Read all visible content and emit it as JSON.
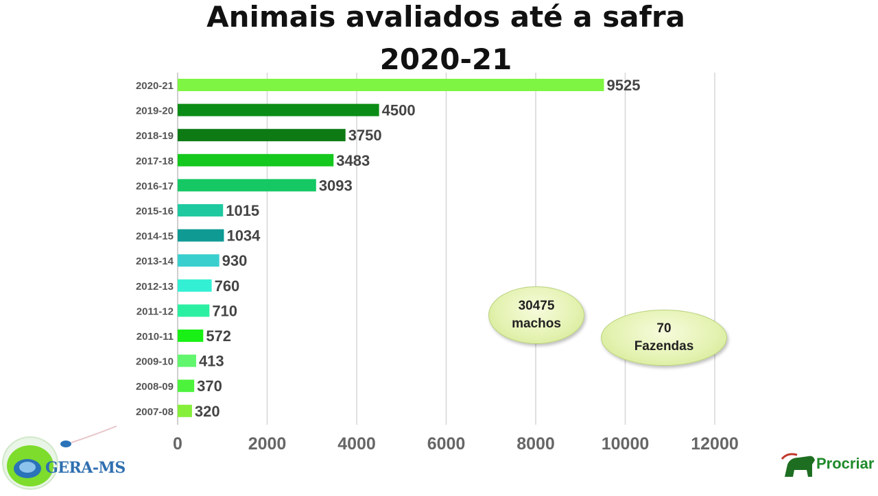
{
  "title_line1": "Animais avaliados até a safra",
  "title_line2": "2020-21",
  "chart_data": {
    "type": "bar",
    "orientation": "horizontal",
    "title": "Animais avaliados até a safra 2020-21",
    "categories": [
      "2020-21",
      "2019-20",
      "2018-19",
      "2017-18",
      "2016-17",
      "2015-16",
      "2014-15",
      "2013-14",
      "2012-13",
      "2011-12",
      "2010-11",
      "2009-10",
      "2008-09",
      "2007-08"
    ],
    "values": [
      9525,
      4500,
      3750,
      3483,
      3093,
      1015,
      1034,
      930,
      760,
      710,
      572,
      413,
      370,
      320
    ],
    "colors": [
      "#7ef542",
      "#0b8c16",
      "#0d7a14",
      "#14c81e",
      "#15c864",
      "#1fc9a0",
      "#0f9a94",
      "#39cfcf",
      "#33f0d4",
      "#2bf0a2",
      "#19f015",
      "#62f56e",
      "#4df23d",
      "#86ef3a"
    ],
    "xlim": [
      0,
      12000
    ],
    "xticks": [
      0,
      2000,
      4000,
      6000,
      8000,
      10000,
      12000
    ],
    "grid": "vertical",
    "data_labels": true
  },
  "callouts": {
    "machos_value": "30475",
    "machos_label": "machos",
    "fazendas_value": "70",
    "fazendas_label": "Fazendas"
  },
  "logos": {
    "left": "GERA-MS",
    "right": "Procriar"
  }
}
